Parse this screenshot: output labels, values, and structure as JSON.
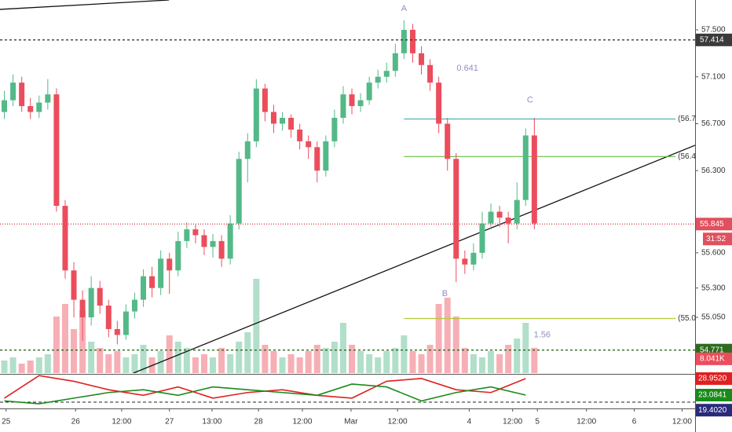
{
  "chart_data": {
    "type": "candlestick",
    "up_color": "#53b987",
    "down_color": "#eb4d5c",
    "x": [
      1,
      3,
      5,
      7,
      9,
      11,
      13,
      15,
      17,
      19,
      21,
      23,
      25,
      27,
      29,
      31,
      33,
      35,
      37,
      39,
      41,
      43,
      45,
      47,
      49,
      51,
      53,
      55,
      57,
      59,
      61,
      63,
      65,
      67,
      69,
      71,
      73,
      75,
      77,
      79,
      81,
      83,
      85,
      87,
      89,
      91,
      93,
      95,
      97,
      99,
      101,
      103,
      105,
      107,
      109,
      111,
      113,
      115,
      117,
      119,
      121,
      123
    ],
    "open": [
      56.8,
      56.9,
      57.05,
      56.85,
      56.8,
      56.88,
      56.95,
      56.0,
      55.45,
      55.2,
      55.05,
      55.3,
      55.15,
      54.95,
      54.9,
      55.1,
      55.2,
      55.4,
      55.3,
      55.55,
      55.45,
      55.7,
      55.8,
      55.75,
      55.65,
      55.7,
      55.55,
      55.85,
      56.4,
      56.55,
      57.0,
      56.8,
      56.7,
      56.75,
      56.65,
      56.55,
      56.5,
      56.3,
      56.55,
      56.75,
      56.95,
      56.85,
      56.9,
      57.05,
      57.1,
      57.15,
      57.3,
      57.5,
      57.3,
      57.2,
      57.05,
      56.7,
      56.4,
      55.55,
      55.5,
      55.6,
      55.85,
      55.95,
      55.9,
      55.85,
      56.05,
      56.6
    ],
    "high": [
      56.98,
      57.12,
      57.1,
      56.92,
      56.94,
      57.08,
      57.0,
      56.05,
      55.52,
      55.28,
      55.4,
      55.36,
      55.2,
      55.02,
      55.16,
      55.26,
      55.46,
      55.48,
      55.62,
      55.6,
      55.78,
      55.86,
      55.84,
      55.8,
      55.76,
      55.75,
      55.92,
      56.46,
      56.62,
      57.08,
      57.04,
      56.86,
      56.8,
      56.78,
      56.7,
      56.6,
      56.55,
      56.6,
      56.82,
      57.02,
      57.0,
      56.96,
      57.1,
      57.16,
      57.22,
      57.38,
      57.58,
      57.55,
      57.36,
      57.25,
      57.1,
      56.75,
      56.45,
      55.62,
      55.68,
      55.95,
      56.02,
      56.0,
      55.95,
      56.2,
      56.66,
      56.75
    ],
    "low": [
      56.74,
      56.85,
      56.8,
      56.74,
      56.75,
      56.82,
      55.95,
      55.38,
      55.05,
      54.85,
      54.98,
      55.08,
      54.88,
      54.82,
      54.86,
      55.04,
      55.14,
      55.22,
      55.24,
      55.25,
      55.4,
      55.64,
      55.68,
      55.58,
      55.56,
      55.48,
      55.5,
      55.8,
      56.2,
      56.5,
      56.72,
      56.62,
      56.64,
      56.58,
      56.48,
      56.4,
      56.2,
      56.25,
      56.5,
      56.7,
      56.78,
      56.8,
      56.86,
      57.0,
      57.05,
      57.1,
      57.25,
      57.22,
      57.12,
      56.98,
      56.62,
      56.3,
      55.35,
      55.42,
      55.45,
      55.55,
      55.8,
      55.82,
      55.68,
      55.8,
      56.0,
      55.8
    ],
    "close": [
      56.9,
      57.05,
      56.85,
      56.8,
      56.88,
      56.95,
      56.0,
      55.45,
      55.2,
      55.05,
      55.3,
      55.15,
      54.95,
      54.9,
      55.1,
      55.2,
      55.4,
      55.3,
      55.55,
      55.45,
      55.7,
      55.8,
      55.75,
      55.65,
      55.7,
      55.55,
      55.85,
      56.4,
      56.55,
      57.0,
      56.8,
      56.7,
      56.75,
      56.65,
      56.55,
      56.5,
      56.3,
      56.55,
      56.75,
      56.95,
      56.85,
      56.9,
      57.05,
      57.1,
      57.15,
      57.3,
      57.5,
      57.3,
      57.2,
      57.05,
      56.7,
      56.4,
      55.55,
      55.5,
      55.6,
      55.85,
      55.95,
      55.9,
      55.85,
      56.05,
      56.6,
      55.85
    ],
    "volume": [
      4,
      5,
      3,
      4,
      5,
      6,
      18,
      22,
      14,
      20,
      10,
      8,
      6,
      7,
      5,
      6,
      9,
      5,
      7,
      12,
      10,
      8,
      5,
      6,
      5,
      8,
      6,
      10,
      13,
      30,
      9,
      7,
      5,
      6,
      5,
      7,
      9,
      8,
      10,
      16,
      9,
      7,
      6,
      5,
      7,
      8,
      12,
      7,
      6,
      9,
      22,
      24,
      18,
      8,
      6,
      5,
      7,
      6,
      9,
      11,
      16,
      8.041
    ],
    "volume_ylim": [
      0,
      40
    ],
    "volume_tag": {
      "value": 8.041,
      "label": "8.041K"
    },
    "xlim": [
      0,
      160
    ],
    "xticks": [
      {
        "value": 1.4,
        "label": "25"
      },
      {
        "value": 17.4,
        "label": "26"
      },
      {
        "value": 28,
        "label": "12:00"
      },
      {
        "value": 39,
        "label": "27"
      },
      {
        "value": 48.8,
        "label": "13:00"
      },
      {
        "value": 59.5,
        "label": "28"
      },
      {
        "value": 69.6,
        "label": "12:00"
      },
      {
        "value": 80.8,
        "label": "Mar"
      },
      {
        "value": 91.5,
        "label": "12:00"
      },
      {
        "value": 108,
        "label": "4"
      },
      {
        "value": 118,
        "label": "12:00"
      },
      {
        "value": 123.7,
        "label": "5"
      },
      {
        "value": 135,
        "label": "12:00"
      },
      {
        "value": 146,
        "label": "6"
      },
      {
        "value": 157,
        "label": "12:00"
      }
    ],
    "ylim": [
      54.575,
      57.754
    ],
    "yticks": [
      {
        "value": 57.5,
        "label": "57.500"
      },
      {
        "value": 57.1,
        "label": "57.100"
      },
      {
        "value": 56.7,
        "label": "56.700"
      },
      {
        "value": 56.3,
        "label": "56.300"
      },
      {
        "value": 55.6,
        "label": "55.600"
      },
      {
        "value": 55.3,
        "label": "55.300"
      },
      {
        "value": 55.05,
        "label": "55.050"
      }
    ],
    "price_tags": [
      {
        "value": 57.414,
        "color": "#3a3a3a",
        "style": "dashed"
      },
      {
        "value": 55.845,
        "color": "#e0505e",
        "style": "dotted"
      },
      {
        "value": 54.771,
        "color": "#2e6b1f",
        "style": "dashed"
      }
    ],
    "countdown": "31:52",
    "fib_levels": {
      "x_range": [
        93,
        155.5
      ],
      "levels": [
        {
          "value": 56.74,
          "label": "(56.7",
          "color": "#4db6ac"
        },
        {
          "value": 56.42,
          "label": "(56.4",
          "color": "#66bb44"
        },
        {
          "value": 55.04,
          "label": "(55.0",
          "color": "#b8c83a"
        }
      ]
    },
    "annotations": [
      {
        "label": "A",
        "x": 93,
        "y": 57.68
      },
      {
        "label": "B",
        "x": 102.4,
        "y": 55.25
      },
      {
        "label": "C",
        "x": 122,
        "y": 56.9
      },
      {
        "label": "0.641",
        "x": 107.6,
        "y": 57.17
      },
      {
        "label": "1.56",
        "x": 124.8,
        "y": 54.9
      }
    ],
    "trend_lines": [
      {
        "x": [
          0,
          38.9
        ],
        "y": [
          57.674,
          57.754
        ]
      },
      {
        "x": [
          30.7,
          160
        ],
        "y": [
          54.575,
          56.516
        ]
      }
    ],
    "indicator": {
      "ylim": [
        18.34,
        30.35
      ],
      "x": [
        1,
        9,
        17,
        25,
        33,
        41,
        49,
        57,
        65,
        73,
        81,
        89,
        97,
        105,
        113,
        121
      ],
      "series": [
        {
          "color": "#e02020",
          "values": [
            22,
            30,
            28,
            25,
            23,
            26,
            22,
            24,
            25,
            23,
            22,
            28,
            29,
            25,
            24,
            28.952
          ],
          "tag": {
            "value": 28.952,
            "label": "28.9520"
          }
        },
        {
          "color": "#1a8a1a",
          "values": [
            21,
            20,
            22,
            24,
            25,
            23,
            26,
            25,
            24,
            23,
            27,
            26,
            21,
            24,
            26,
            23.0841
          ],
          "tag": {
            "value": 23.0841,
            "label": "23.0841"
          }
        }
      ],
      "extra_tag": {
        "value": 19.402,
        "label": "19.4020",
        "color": "#2a2a7a"
      }
    }
  }
}
